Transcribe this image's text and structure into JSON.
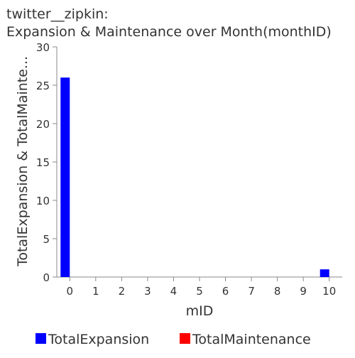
{
  "chart_data": {
    "type": "bar",
    "title": "twitter__zipkin:",
    "subtitle": "Expansion & Maintenance over Month(monthID)",
    "xlabel": "mID",
    "ylabel": "TotalExpansion & TotalMainte...",
    "categories": [
      "0",
      "1",
      "2",
      "3",
      "4",
      "5",
      "6",
      "7",
      "8",
      "9",
      "10"
    ],
    "ylim": [
      0,
      30
    ],
    "yticks": [
      0,
      5,
      10,
      15,
      20,
      25,
      30
    ],
    "series": [
      {
        "name": "TotalExpansion",
        "color": "#0000ff",
        "values": [
          26,
          0,
          0,
          0,
          0,
          0,
          0,
          0,
          0,
          0,
          1
        ]
      },
      {
        "name": "TotalMaintenance",
        "color": "#ff0000",
        "values": [
          0,
          0,
          0,
          0,
          0,
          0,
          0,
          0,
          0,
          0,
          0
        ]
      }
    ],
    "grid": false,
    "legend_position": "bottom"
  }
}
